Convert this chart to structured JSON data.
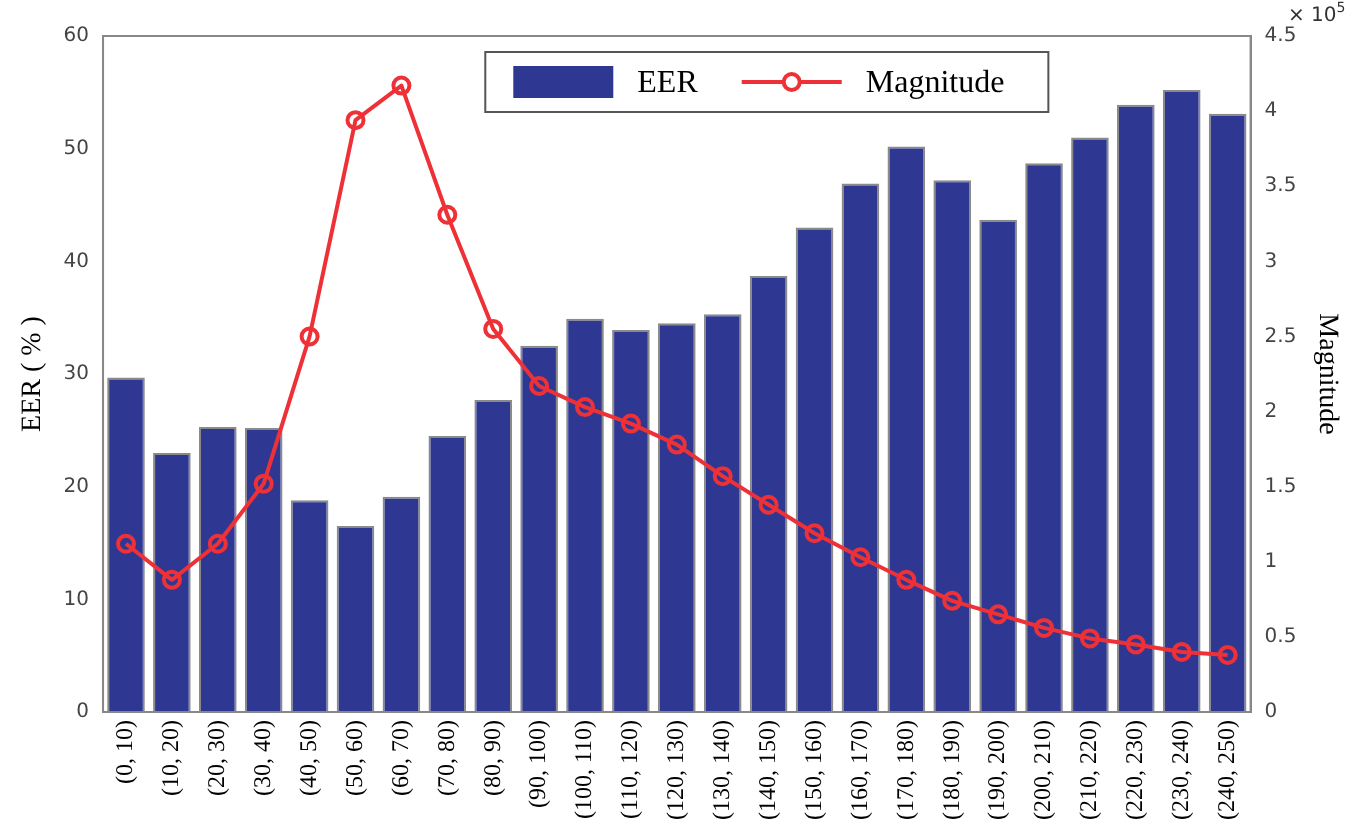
{
  "chart_data": {
    "type": "bar",
    "categories": [
      "(0, 10)",
      "(10, 20)",
      "(20, 30)",
      "(30, 40)",
      "(40, 50)",
      "(50, 60)",
      "(60, 70)",
      "(70, 80)",
      "(80, 90)",
      "(90, 100)",
      "(100, 110)",
      "(110, 120)",
      "(120, 130)",
      "(130, 140)",
      "(140, 150)",
      "(150, 160)",
      "(160, 170)",
      "(170, 180)",
      "(180, 190)",
      "(190, 200)",
      "(200, 210)",
      "(210, 220)",
      "(220, 230)",
      "(230, 240)",
      "(240, 250)"
    ],
    "ylabel": "EER ( % )",
    "y2label": "Magnitude",
    "annotations": [
      "× 10$^{5}$"
    ],
    "ylim": [
      0,
      60
    ],
    "yticks": [
      0,
      10,
      20,
      30,
      40,
      50,
      60
    ],
    "y2lim": [
      0,
      4.5
    ],
    "y2ticks": [
      0,
      0.5,
      1,
      1.5,
      2,
      2.5,
      3,
      3.5,
      4,
      4.5
    ],
    "legend": "top",
    "grid": false,
    "marker": "circle",
    "line_style": "solid",
    "series": [
      {
        "name": "EER",
        "color": "#2e3893",
        "values": [
          29.7,
          23,
          25.3,
          25.2,
          18.8,
          16.5,
          19.1,
          24.5,
          27.7,
          32.5,
          34.9,
          33.9,
          34.5,
          35.3,
          38.7,
          43,
          46.9,
          50.2,
          47.2,
          43.7,
          48.7,
          51,
          53.9,
          55.2,
          53.1
        ]
      },
      {
        "name": "Magnitude",
        "type": "line",
        "axis": "y2",
        "color": "#ee3136",
        "values": [
          1.12,
          0.88,
          1.12,
          1.52,
          2.5,
          3.94,
          4.17,
          3.31,
          2.55,
          2.17,
          2.03,
          1.92,
          1.78,
          1.57,
          1.38,
          1.19,
          1.03,
          0.88,
          0.74,
          0.65,
          0.56,
          0.49,
          0.45,
          0.4,
          0.38
        ]
      }
    ]
  }
}
